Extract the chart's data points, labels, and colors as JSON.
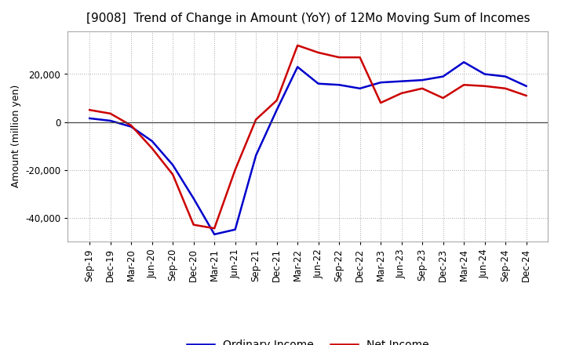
{
  "title": "[9008]  Trend of Change in Amount (YoY) of 12Mo Moving Sum of Incomes",
  "ylabel": "Amount (million yen)",
  "x_labels": [
    "Sep-19",
    "Dec-19",
    "Mar-20",
    "Jun-20",
    "Sep-20",
    "Dec-20",
    "Mar-21",
    "Jun-21",
    "Sep-21",
    "Dec-21",
    "Mar-22",
    "Jun-22",
    "Sep-22",
    "Dec-22",
    "Mar-23",
    "Jun-23",
    "Sep-23",
    "Dec-23",
    "Mar-24",
    "Jun-24",
    "Sep-24",
    "Dec-24"
  ],
  "ordinary_income": [
    1500,
    500,
    -2000,
    -8000,
    -18000,
    -32000,
    -47000,
    -45000,
    -14000,
    5000,
    23000,
    16000,
    15500,
    14000,
    16500,
    17000,
    17500,
    19000,
    25000,
    20000,
    19000,
    15000
  ],
  "net_income": [
    5000,
    3500,
    -1500,
    -11000,
    -22000,
    -43000,
    -44500,
    -20000,
    1000,
    9000,
    32000,
    29000,
    27000,
    27000,
    8000,
    12000,
    14000,
    10000,
    15500,
    15000,
    14000,
    11000
  ],
  "ordinary_income_color": "#0000cc",
  "net_income_color": "#cc0000",
  "background_color": "#ffffff",
  "grid_color": "#aaaaaa",
  "ylim": [
    -50000,
    38000
  ],
  "yticks": [
    -40000,
    -20000,
    0,
    20000
  ],
  "legend_labels": [
    "Ordinary Income",
    "Net Income"
  ],
  "line_width": 1.8,
  "title_fontsize": 11,
  "ylabel_fontsize": 9,
  "tick_fontsize": 8.5
}
